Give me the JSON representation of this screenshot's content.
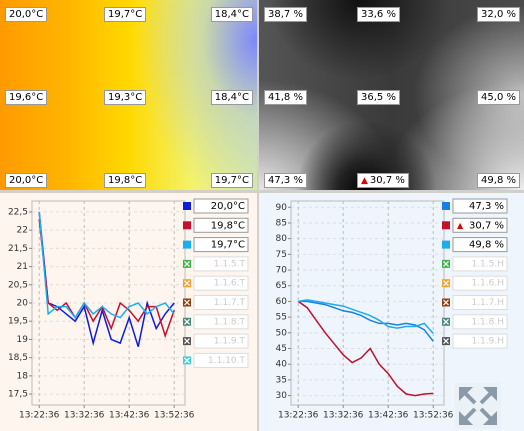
{
  "heatmaps": [
    {
      "labels": [
        [
          "20,0°C",
          "19,7°C",
          "18,4°C"
        ],
        [
          "19,6°C",
          "19,3°C",
          "18,4°C"
        ],
        [
          "20,0°C",
          "19,8°C",
          "19,7°C"
        ]
      ]
    },
    {
      "labels": [
        [
          "38,7 %",
          "33,6 %",
          "32,0 %"
        ],
        [
          "41,8 %",
          "36,5 %",
          "45,0 %"
        ],
        [
          "47,3 %",
          "30,7 %",
          "49,8 %"
        ]
      ]
    }
  ],
  "chart_data": [
    {
      "type": "line",
      "x": [
        "13:22:36",
        "13:24:36",
        "13:26:36",
        "13:28:36",
        "13:30:36",
        "13:32:36",
        "13:34:36",
        "13:36:36",
        "13:38:36",
        "13:40:36",
        "13:42:36",
        "13:44:36",
        "13:46:36",
        "13:48:36",
        "13:50:36",
        "13:52:36"
      ],
      "xlim": [
        "13:21:00",
        "13:55:00"
      ],
      "xticks": [
        "13:22:36",
        "13:32:36",
        "13:42:36",
        "13:52:36"
      ],
      "ylim": [
        17.2,
        22.8
      ],
      "yticks": [
        {
          "value": 17.5,
          "label": "17,5"
        },
        18,
        {
          "value": 18.5,
          "label": "18,5"
        },
        19,
        {
          "value": 19.5,
          "label": "19,5"
        },
        20,
        {
          "value": 20.5,
          "label": "20,5"
        },
        21,
        {
          "value": 21.5,
          "label": "21,5"
        },
        22,
        {
          "value": 22.5,
          "label": "22,5"
        }
      ],
      "grid": true,
      "series": [
        {
          "label": "20,0°C",
          "color": "#0a1ee0",
          "values": [
            22.5,
            20.0,
            19.9,
            19.7,
            19.5,
            19.9,
            18.9,
            19.8,
            19.0,
            18.9,
            19.6,
            18.8,
            20.0,
            19.3,
            19.7,
            20.0
          ]
        },
        {
          "label": "19,8°C",
          "color": "#c8102e",
          "values": [
            22.3,
            20.0,
            19.8,
            20.0,
            19.6,
            20.0,
            19.5,
            19.9,
            19.3,
            20.0,
            19.8,
            19.5,
            19.9,
            19.9,
            19.1,
            19.8
          ]
        },
        {
          "label": "19,7°C",
          "color": "#1aaef0",
          "values": [
            22.5,
            19.7,
            19.9,
            19.9,
            19.6,
            20.0,
            19.7,
            19.9,
            19.7,
            19.6,
            19.9,
            20.0,
            19.7,
            19.9,
            20.0,
            19.7
          ]
        }
      ],
      "disabled": [
        {
          "name": "1.1.5.T",
          "color": "#3cb44b"
        },
        {
          "name": "1.1.6.T",
          "color": "#f5a030"
        },
        {
          "name": "1.1.7.T",
          "color": "#8b4513"
        },
        {
          "name": "1.1.8.T",
          "color": "#4a8a80"
        },
        {
          "name": "1.1.9.T",
          "color": "#555555"
        },
        {
          "name": "1.1.10.T",
          "color": "#40d0d8"
        }
      ]
    },
    {
      "type": "line",
      "x": [
        "13:22:36",
        "13:24:36",
        "13:26:36",
        "13:28:36",
        "13:30:36",
        "13:32:36",
        "13:34:36",
        "13:36:36",
        "13:38:36",
        "13:40:36",
        "13:42:36",
        "13:44:36",
        "13:46:36",
        "13:48:36",
        "13:50:36",
        "13:52:36"
      ],
      "xlim": [
        "13:21:00",
        "13:55:00"
      ],
      "xticks": [
        "13:22:36",
        "13:32:36",
        "13:42:36",
        "13:52:36"
      ],
      "ylim": [
        27,
        92
      ],
      "yticks": [
        30,
        35,
        40,
        45,
        50,
        55,
        60,
        65,
        70,
        75,
        80,
        85,
        90
      ],
      "grid": true,
      "series": [
        {
          "label": "47,3 %",
          "color": "#1a7fe0",
          "values": [
            60,
            60,
            59.5,
            59,
            58,
            57,
            56.5,
            55.5,
            54,
            53,
            53,
            52.5,
            53,
            52.5,
            51,
            47.3
          ]
        },
        {
          "label": "30,7 %",
          "color": "#c0102a",
          "values": [
            60,
            58,
            54,
            50,
            46.5,
            43,
            40.5,
            42,
            45,
            40,
            37,
            33,
            30.5,
            30,
            30.5,
            30.7
          ]
        },
        {
          "label": "49,8 %",
          "color": "#22aaee",
          "values": [
            60,
            60.5,
            60,
            59.5,
            59,
            58.5,
            57.5,
            56.5,
            55.5,
            54,
            52,
            51.5,
            52,
            52,
            53,
            49.8
          ]
        }
      ],
      "disabled": [
        {
          "name": "1.1.5.H",
          "color": "#3cb44b"
        },
        {
          "name": "1.1.6.H",
          "color": "#f5a030"
        },
        {
          "name": "1.1.7.H",
          "color": "#8b4513"
        },
        {
          "name": "1.1.8.H",
          "color": "#4a8a80"
        },
        {
          "name": "1.1.9.H",
          "color": "#555555"
        }
      ]
    }
  ]
}
